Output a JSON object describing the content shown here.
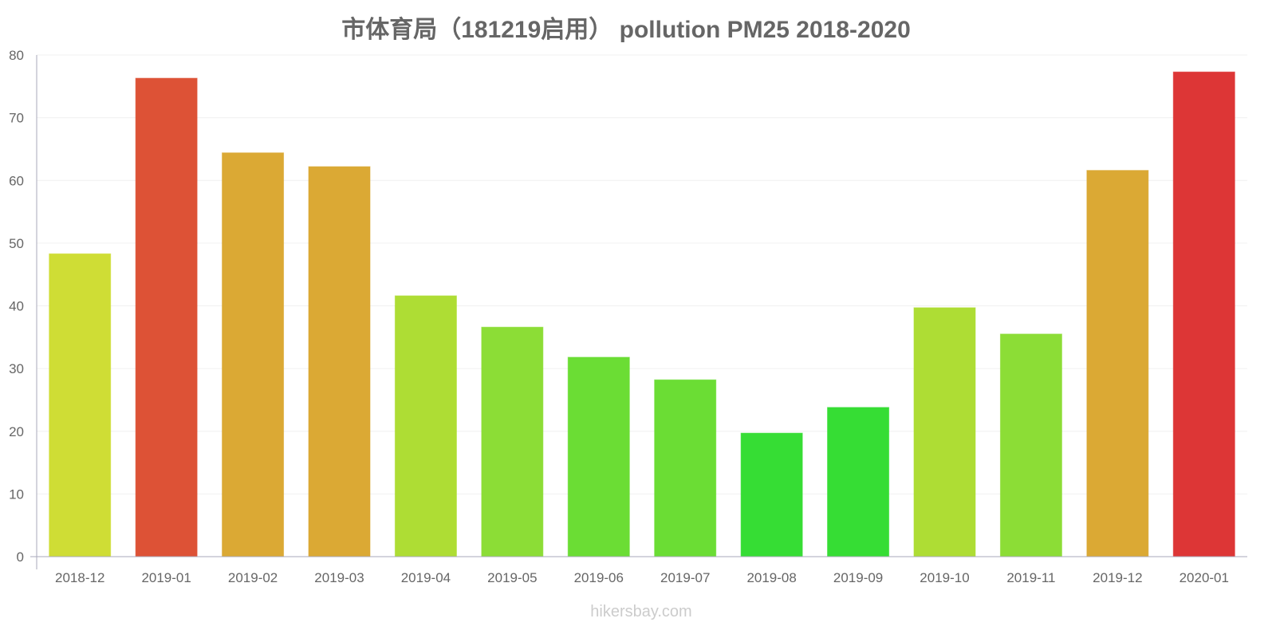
{
  "chart_data": {
    "type": "bar",
    "title": "市体育局（181219启用） pollution PM25 2018-2020",
    "xlabel": "",
    "ylabel": "",
    "ylim": [
      0,
      80
    ],
    "yticks": [
      "0",
      "10",
      "20",
      "30",
      "40",
      "50",
      "60",
      "70",
      "80"
    ],
    "grid": true,
    "categories": [
      "2018-12",
      "2019-01",
      "2019-02",
      "2019-03",
      "2019-04",
      "2019-05",
      "2019-06",
      "2019-07",
      "2019-08",
      "2019-09",
      "2019-10",
      "2019-11",
      "2019-12",
      "2020-01"
    ],
    "values": [
      48.3,
      76.3,
      64.4,
      62.2,
      41.6,
      36.6,
      31.8,
      28.2,
      19.7,
      23.8,
      39.7,
      35.5,
      61.6,
      77.3
    ],
    "colors": [
      "#cfdd35",
      "#dd5236",
      "#dba934",
      "#dba934",
      "#aedd34",
      "#8cdd36",
      "#6bdd34",
      "#6bdd34",
      "#36dd34",
      "#36dd34",
      "#aedd34",
      "#8cdd36",
      "#dba934",
      "#dd3636"
    ]
  },
  "watermark": "hikersbay.com"
}
